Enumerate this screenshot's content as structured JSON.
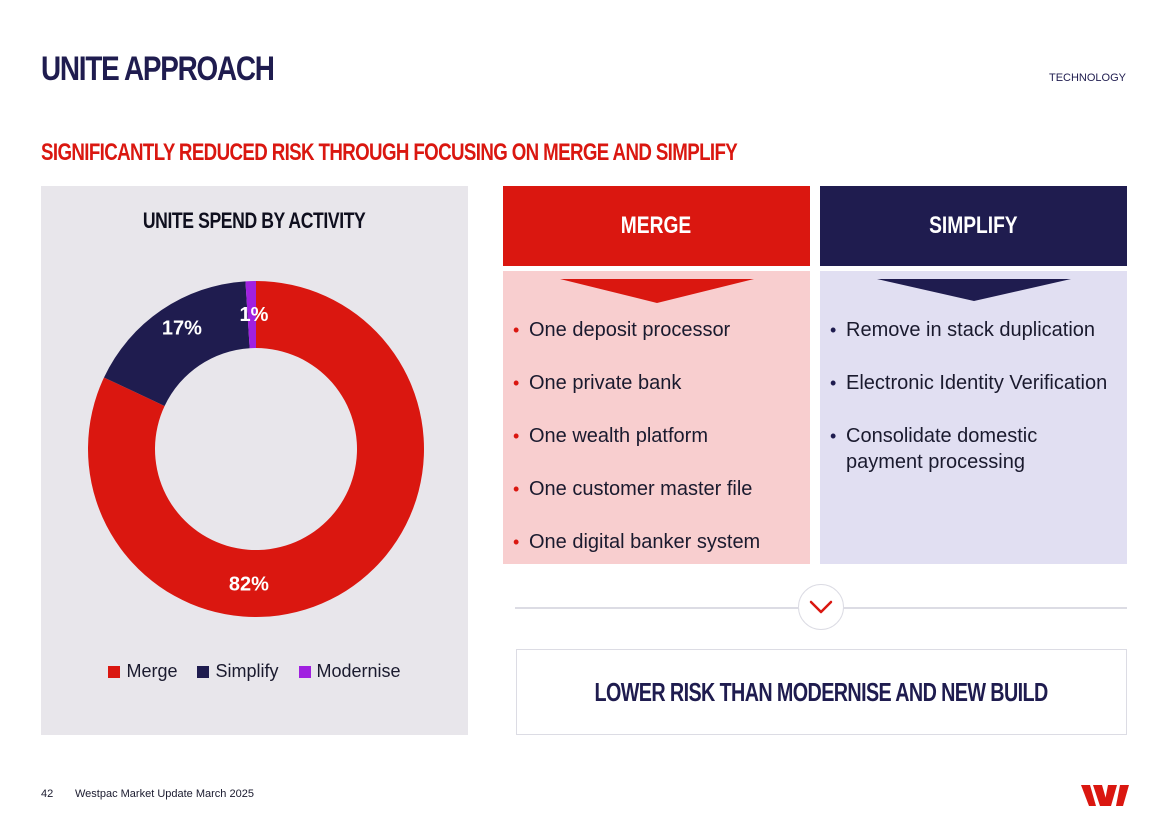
{
  "header": {
    "title": "UNITE APPROACH",
    "section_tag": "TECHNOLOGY",
    "subtitle": "SIGNIFICANTLY REDUCED RISK THROUGH FOCUSING ON MERGE AND SIMPLIFY"
  },
  "chart_data": {
    "type": "pie",
    "title": "UNITE SPEND BY ACTIVITY",
    "categories": [
      "Merge",
      "Simplify",
      "Modernise"
    ],
    "values": [
      82,
      17,
      1
    ],
    "labels": [
      "82%",
      "17%",
      "1%"
    ],
    "colors": [
      "#da1710",
      "#1f1c4f",
      "#a020e0"
    ],
    "legend_position": "bottom"
  },
  "merge": {
    "header": "MERGE",
    "items": [
      "One deposit processor",
      "One private bank",
      "One wealth platform",
      "One customer master file",
      "One digital banker system"
    ]
  },
  "simplify": {
    "header": "SIMPLIFY",
    "items": [
      "Remove in stack duplication",
      "Electronic Identity Verification",
      "Consolidate domestic payment processing"
    ]
  },
  "conclusion": {
    "text": "LOWER RISK THAN MODERNISE AND NEW BUILD"
  },
  "footer": {
    "page_number": "42",
    "text": "Westpac Market Update March 2025"
  },
  "colors": {
    "brand_red": "#da1710",
    "brand_navy": "#1f1c4f",
    "modernise_purple": "#a020e0"
  }
}
